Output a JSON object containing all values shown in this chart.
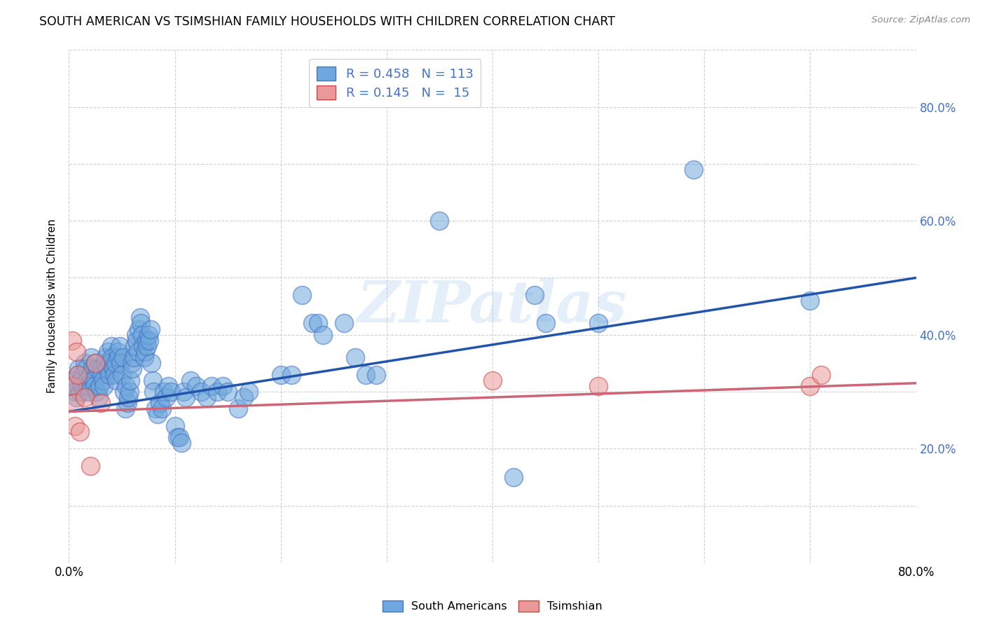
{
  "title": "SOUTH AMERICAN VS TSIMSHIAN FAMILY HOUSEHOLDS WITH CHILDREN CORRELATION CHART",
  "source": "Source: ZipAtlas.com",
  "ylabel": "Family Households with Children",
  "xlim": [
    0.0,
    0.8
  ],
  "ylim": [
    0.0,
    0.9
  ],
  "x_ticks": [
    0.0,
    0.1,
    0.2,
    0.3,
    0.4,
    0.5,
    0.6,
    0.7,
    0.8
  ],
  "x_tick_labels": [
    "0.0%",
    "",
    "",
    "",
    "",
    "",
    "",
    "",
    "80.0%"
  ],
  "y_ticks": [
    0.0,
    0.1,
    0.2,
    0.3,
    0.4,
    0.5,
    0.6,
    0.7,
    0.8,
    0.9
  ],
  "y_tick_labels_right": [
    "",
    "",
    "20.0%",
    "",
    "40.0%",
    "",
    "60.0%",
    "",
    "80.0%",
    ""
  ],
  "blue_scatter_color": "#6fa8dc",
  "blue_scatter_edge": "#4472c4",
  "pink_scatter_color": "#ea9999",
  "pink_scatter_edge": "#cc4444",
  "blue_line_color": "#2255aa",
  "pink_line_color": "#cc6677",
  "grid_color": "#cccccc",
  "watermark_color": "#aaccee",
  "south_americans": [
    [
      0.003,
      0.32
    ],
    [
      0.005,
      0.31
    ],
    [
      0.006,
      0.3
    ],
    [
      0.007,
      0.29
    ],
    [
      0.008,
      0.33
    ],
    [
      0.009,
      0.34
    ],
    [
      0.01,
      0.3
    ],
    [
      0.011,
      0.32
    ],
    [
      0.012,
      0.31
    ],
    [
      0.013,
      0.33
    ],
    [
      0.014,
      0.3
    ],
    [
      0.015,
      0.35
    ],
    [
      0.016,
      0.34
    ],
    [
      0.017,
      0.32
    ],
    [
      0.018,
      0.31
    ],
    [
      0.019,
      0.3
    ],
    [
      0.02,
      0.33
    ],
    [
      0.021,
      0.36
    ],
    [
      0.022,
      0.34
    ],
    [
      0.023,
      0.32
    ],
    [
      0.024,
      0.31
    ],
    [
      0.025,
      0.35
    ],
    [
      0.026,
      0.3
    ],
    [
      0.027,
      0.34
    ],
    [
      0.028,
      0.29
    ],
    [
      0.029,
      0.31
    ],
    [
      0.03,
      0.34
    ],
    [
      0.031,
      0.33
    ],
    [
      0.032,
      0.32
    ],
    [
      0.033,
      0.31
    ],
    [
      0.034,
      0.35
    ],
    [
      0.035,
      0.36
    ],
    [
      0.036,
      0.34
    ],
    [
      0.037,
      0.37
    ],
    [
      0.038,
      0.33
    ],
    [
      0.039,
      0.35
    ],
    [
      0.04,
      0.38
    ],
    [
      0.041,
      0.36
    ],
    [
      0.042,
      0.34
    ],
    [
      0.043,
      0.33
    ],
    [
      0.044,
      0.35
    ],
    [
      0.045,
      0.32
    ],
    [
      0.046,
      0.37
    ],
    [
      0.047,
      0.36
    ],
    [
      0.048,
      0.38
    ],
    [
      0.049,
      0.35
    ],
    [
      0.05,
      0.33
    ],
    [
      0.051,
      0.36
    ],
    [
      0.052,
      0.3
    ],
    [
      0.053,
      0.27
    ],
    [
      0.054,
      0.31
    ],
    [
      0.055,
      0.28
    ],
    [
      0.056,
      0.29
    ],
    [
      0.057,
      0.3
    ],
    [
      0.058,
      0.32
    ],
    [
      0.059,
      0.35
    ],
    [
      0.06,
      0.34
    ],
    [
      0.061,
      0.36
    ],
    [
      0.062,
      0.38
    ],
    [
      0.063,
      0.4
    ],
    [
      0.064,
      0.39
    ],
    [
      0.065,
      0.37
    ],
    [
      0.066,
      0.41
    ],
    [
      0.067,
      0.43
    ],
    [
      0.068,
      0.42
    ],
    [
      0.069,
      0.4
    ],
    [
      0.07,
      0.38
    ],
    [
      0.071,
      0.36
    ],
    [
      0.072,
      0.37
    ],
    [
      0.073,
      0.39
    ],
    [
      0.074,
      0.38
    ],
    [
      0.075,
      0.4
    ],
    [
      0.076,
      0.39
    ],
    [
      0.077,
      0.41
    ],
    [
      0.078,
      0.35
    ],
    [
      0.079,
      0.32
    ],
    [
      0.08,
      0.3
    ],
    [
      0.082,
      0.27
    ],
    [
      0.084,
      0.26
    ],
    [
      0.086,
      0.28
    ],
    [
      0.088,
      0.27
    ],
    [
      0.09,
      0.3
    ],
    [
      0.092,
      0.29
    ],
    [
      0.094,
      0.31
    ],
    [
      0.096,
      0.3
    ],
    [
      0.1,
      0.24
    ],
    [
      0.102,
      0.22
    ],
    [
      0.104,
      0.22
    ],
    [
      0.106,
      0.21
    ],
    [
      0.108,
      0.3
    ],
    [
      0.11,
      0.29
    ],
    [
      0.115,
      0.32
    ],
    [
      0.12,
      0.31
    ],
    [
      0.125,
      0.3
    ],
    [
      0.13,
      0.29
    ],
    [
      0.135,
      0.31
    ],
    [
      0.14,
      0.3
    ],
    [
      0.145,
      0.31
    ],
    [
      0.15,
      0.3
    ],
    [
      0.16,
      0.27
    ],
    [
      0.165,
      0.29
    ],
    [
      0.17,
      0.3
    ],
    [
      0.2,
      0.33
    ],
    [
      0.21,
      0.33
    ],
    [
      0.22,
      0.47
    ],
    [
      0.23,
      0.42
    ],
    [
      0.235,
      0.42
    ],
    [
      0.24,
      0.4
    ],
    [
      0.26,
      0.42
    ],
    [
      0.27,
      0.36
    ],
    [
      0.28,
      0.33
    ],
    [
      0.29,
      0.33
    ],
    [
      0.35,
      0.6
    ],
    [
      0.42,
      0.15
    ],
    [
      0.44,
      0.47
    ],
    [
      0.45,
      0.42
    ],
    [
      0.5,
      0.42
    ],
    [
      0.59,
      0.69
    ],
    [
      0.7,
      0.46
    ]
  ],
  "tsimshian": [
    [
      0.003,
      0.39
    ],
    [
      0.004,
      0.31
    ],
    [
      0.005,
      0.28
    ],
    [
      0.006,
      0.24
    ],
    [
      0.007,
      0.37
    ],
    [
      0.008,
      0.33
    ],
    [
      0.01,
      0.23
    ],
    [
      0.015,
      0.29
    ],
    [
      0.02,
      0.17
    ],
    [
      0.025,
      0.35
    ],
    [
      0.03,
      0.28
    ],
    [
      0.4,
      0.32
    ],
    [
      0.5,
      0.31
    ],
    [
      0.7,
      0.31
    ],
    [
      0.71,
      0.33
    ]
  ],
  "blue_line_x0": 0.0,
  "blue_line_y0": 0.265,
  "blue_line_x1": 0.8,
  "blue_line_y1": 0.5,
  "pink_line_x0": 0.0,
  "pink_line_y0": 0.265,
  "pink_line_x1": 0.8,
  "pink_line_y1": 0.315,
  "figsize": [
    14.06,
    8.92
  ],
  "dpi": 100
}
